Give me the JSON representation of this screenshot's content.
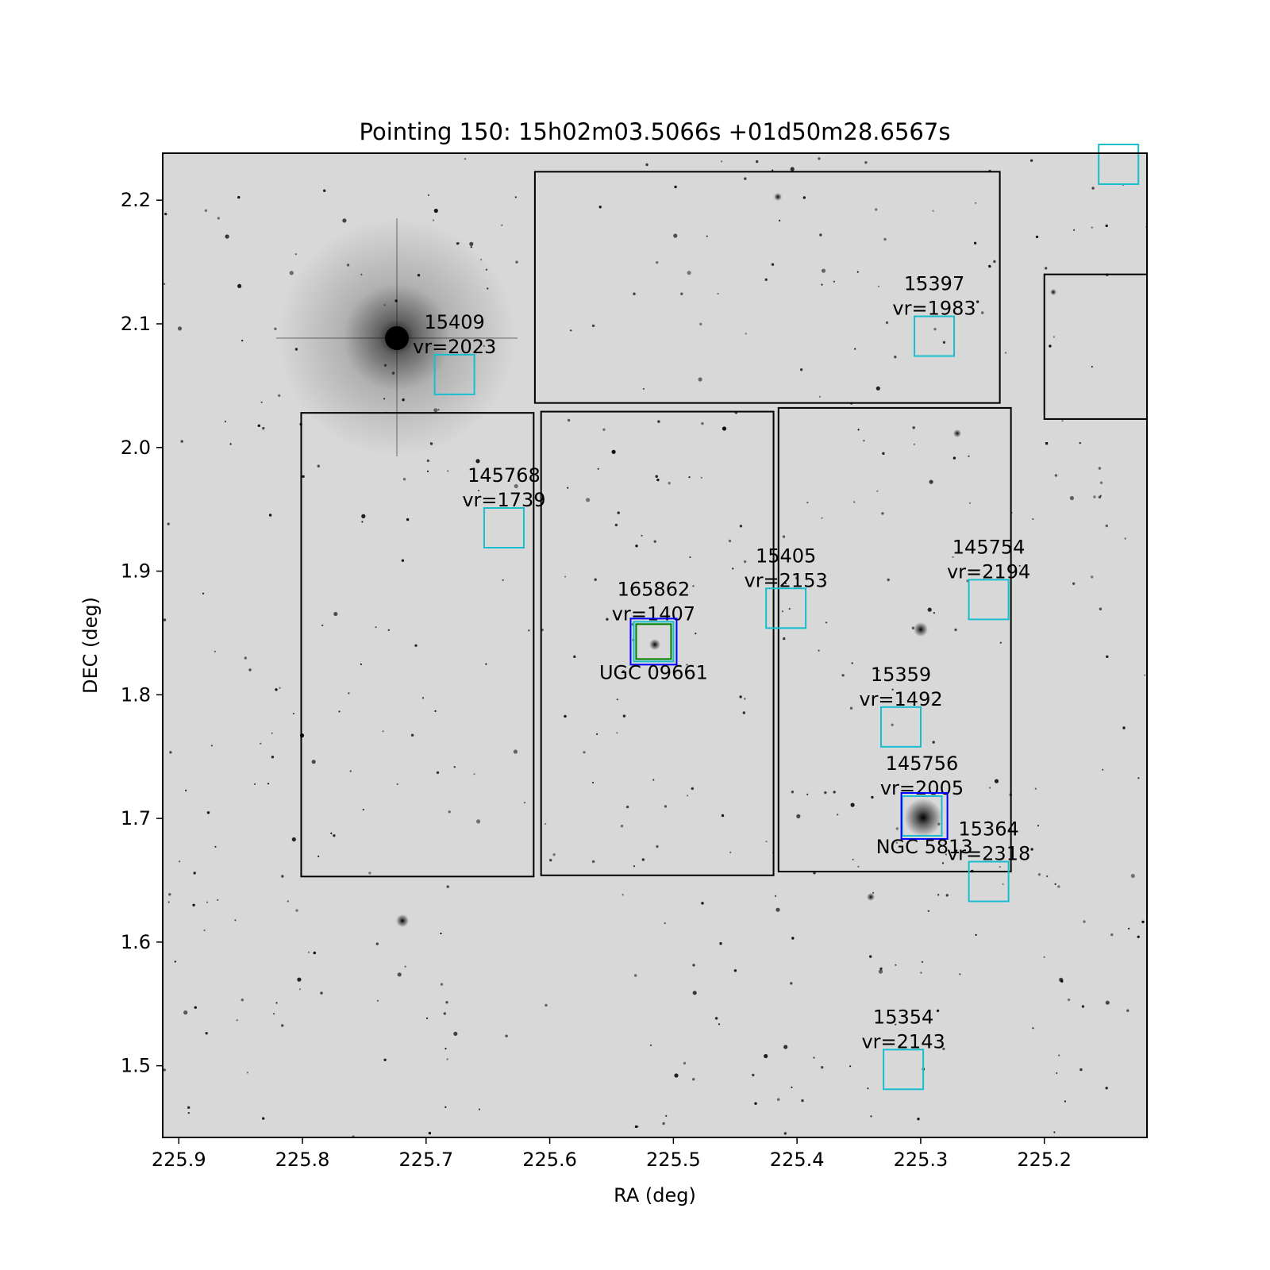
{
  "chart_data": {
    "type": "scatter",
    "title": "Pointing 150: 15h02m03.5066s +01d50m28.6567s",
    "xlabel": "RA (deg)",
    "ylabel": "DEC (deg)",
    "xlim": [
      225.913,
      225.117
    ],
    "ylim": [
      1.442,
      2.238
    ],
    "x_ticks": [
      "225.9",
      "225.8",
      "225.7",
      "225.6",
      "225.5",
      "225.4",
      "225.3",
      "225.2"
    ],
    "x_tick_values": [
      225.9,
      225.8,
      225.7,
      225.6,
      225.5,
      225.4,
      225.3,
      225.2
    ],
    "y_ticks": [
      "1.5",
      "1.6",
      "1.7",
      "1.8",
      "1.9",
      "2.0",
      "2.1",
      "2.2"
    ],
    "y_tick_values": [
      1.5,
      1.6,
      1.7,
      1.8,
      1.9,
      2.0,
      2.1,
      2.2
    ],
    "background": "greyscale sky survey image",
    "colors": {
      "catalog": "#17becf",
      "target": "#0000ff",
      "target_inner": "#008000",
      "footprint": "#000000"
    },
    "footprints": [
      {
        "ra_min": 225.612,
        "ra_max": 225.236,
        "dec_min": 2.036,
        "dec_max": 2.223
      },
      {
        "ra_min": 225.801,
        "ra_max": 225.613,
        "dec_min": 1.653,
        "dec_max": 2.028
      },
      {
        "ra_min": 225.607,
        "ra_max": 225.419,
        "dec_min": 1.654,
        "dec_max": 2.029
      },
      {
        "ra_min": 225.415,
        "ra_max": 225.227,
        "dec_min": 1.657,
        "dec_max": 2.032
      },
      {
        "ra_min": 225.2,
        "ra_max": 225.117,
        "dec_min": 2.023,
        "dec_max": 2.14
      }
    ],
    "catalog_sources": [
      {
        "id": "15409",
        "vr": "vr=2023",
        "ra": 225.677,
        "dec": 2.059
      },
      {
        "id": "15397",
        "vr": "vr=1983",
        "ra": 225.289,
        "dec": 2.09
      },
      {
        "id": "145768",
        "vr": "vr=1739",
        "ra": 225.637,
        "dec": 1.935
      },
      {
        "id": "15405",
        "vr": "vr=2153",
        "ra": 225.409,
        "dec": 1.87
      },
      {
        "id": "145754",
        "vr": "vr=2194",
        "ra": 225.245,
        "dec": 1.877
      },
      {
        "id": "165862",
        "vr": "vr=1407",
        "ra": 225.516,
        "dec": 1.843
      },
      {
        "id": "15359",
        "vr": "vr=1492",
        "ra": 225.316,
        "dec": 1.774
      },
      {
        "id": "145756",
        "vr": "vr=2005",
        "ra": 225.299,
        "dec": 1.702
      },
      {
        "id": "15364",
        "vr": "vr=2318",
        "ra": 225.245,
        "dec": 1.649
      },
      {
        "id": "15354",
        "vr": "vr=2143",
        "ra": 225.314,
        "dec": 1.497
      },
      {
        "id": "",
        "vr": "",
        "ra": 225.14,
        "dec": 2.229
      }
    ],
    "targets": [
      {
        "name": "UGC 09661",
        "ra": 225.516,
        "dec": 1.843,
        "inner": true
      },
      {
        "name": "NGC 5813",
        "ra": 225.297,
        "dec": 1.702,
        "inner": false
      }
    ]
  }
}
